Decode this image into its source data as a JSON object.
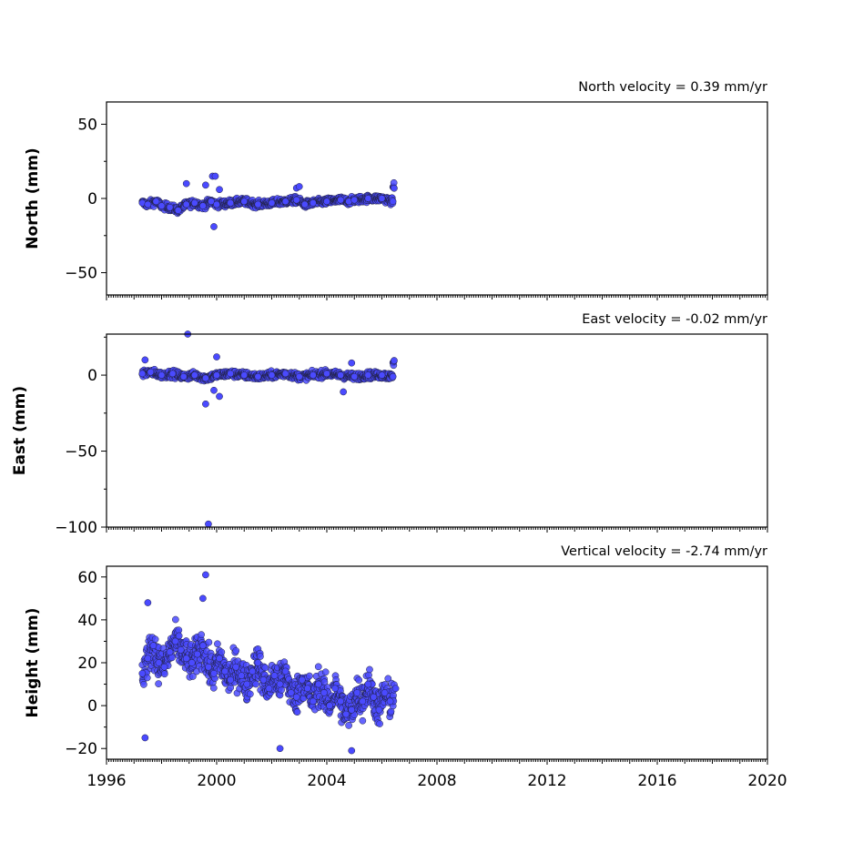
{
  "chart_data": [
    {
      "type": "scatter",
      "title": "North velocity = 0.39 mm/yr",
      "ylabel": "North (mm)",
      "xlim": [
        1996,
        2020
      ],
      "ylim": [
        -65,
        65
      ],
      "yticks": [
        -50,
        0,
        50
      ],
      "ytick_labels": [
        "−50",
        "0",
        "50"
      ],
      "xticks": [
        1996,
        2000,
        2004,
        2008,
        2012,
        2016,
        2020
      ],
      "xtick_labels": [],
      "marker_color": "#4a4aff",
      "series": [
        {
          "x": [
            1997.3,
            1997.5,
            1997.8,
            1998.0,
            1998.3,
            1998.6,
            1998.9,
            1999.2,
            1999.5,
            1999.8,
            2000.0,
            2000.5,
            2001.0,
            2001.5,
            2002.0,
            2002.5,
            2002.9,
            2003.2,
            2003.5,
            2004.0,
            2004.5,
            2004.8,
            2005.0,
            2005.5,
            2006.0,
            2006.4,
            1998.9,
            1999.6,
            1999.85,
            1999.95,
            2000.1,
            1999.9,
            2002.9,
            2003.0
          ],
          "y": [
            -3,
            -4,
            -2,
            -5,
            -6,
            -8,
            -4,
            -3,
            -5,
            -2,
            -4,
            -3,
            -2,
            -4,
            -3,
            -2,
            -1,
            -4,
            -3,
            -2,
            -1,
            -2,
            -1,
            0,
            0,
            -2,
            10,
            9,
            15,
            15,
            6,
            -19,
            7,
            8
          ]
        }
      ]
    },
    {
      "type": "scatter",
      "title": "East velocity = -0.02 mm/yr",
      "ylabel": "East (mm)",
      "xlim": [
        1996,
        2020
      ],
      "ylim": [
        -100,
        27
      ],
      "yticks": [
        -100,
        -50,
        0
      ],
      "ytick_labels": [
        "−100",
        "−50",
        "0"
      ],
      "xticks": [
        1996,
        2000,
        2004,
        2008,
        2012,
        2016,
        2020
      ],
      "xtick_labels": [],
      "marker_color": "#4a4aff",
      "series": [
        {
          "x": [
            1997.3,
            1997.6,
            1998.0,
            1998.4,
            1998.8,
            1999.2,
            1999.6,
            2000.0,
            2000.5,
            2001.0,
            2001.5,
            2002.0,
            2002.5,
            2003.0,
            2003.5,
            2004.0,
            2004.5,
            2005.0,
            2005.5,
            2006.0,
            2006.4,
            1997.4,
            1998.95,
            1999.6,
            1999.9,
            2000.0,
            2000.1,
            1999.7,
            2004.6,
            2004.9
          ],
          "y": [
            1,
            2,
            0,
            1,
            -1,
            0,
            -2,
            0,
            1,
            0,
            -1,
            0,
            1,
            -1,
            0,
            1,
            0,
            -1,
            0,
            0,
            -1,
            10,
            27,
            -19,
            -10,
            12,
            -14,
            -98,
            -11,
            8
          ]
        }
      ]
    },
    {
      "type": "scatter",
      "title": "Vertical velocity = -2.74 mm/yr",
      "ylabel": "Height (mm)",
      "xlim": [
        1996,
        2020
      ],
      "ylim": [
        -25,
        65
      ],
      "yticks": [
        -20,
        0,
        20,
        40,
        60
      ],
      "ytick_labels": [
        "−20",
        "0",
        "20",
        "40",
        "60"
      ],
      "xticks": [
        1996,
        2000,
        2004,
        2008,
        2012,
        2016,
        2020
      ],
      "xtick_labels": [
        "1996",
        "2000",
        "2004",
        "2008",
        "2012",
        "2016",
        "2020"
      ],
      "marker_color": "#4a4aff",
      "series": [
        {
          "x": [
            1997.3,
            1997.5,
            1997.7,
            1997.9,
            1998.1,
            1998.3,
            1998.5,
            1998.7,
            1998.9,
            1999.1,
            1999.3,
            1999.5,
            1999.7,
            1999.9,
            2000.1,
            2000.3,
            2000.5,
            2000.7,
            2000.9,
            2001.1,
            2001.3,
            2001.5,
            2001.7,
            2001.9,
            2002.1,
            2002.3,
            2002.5,
            2002.7,
            2002.9,
            2003.1,
            2003.3,
            2003.5,
            2003.7,
            2003.9,
            2004.1,
            2004.3,
            2004.5,
            2004.7,
            2004.9,
            2005.1,
            2005.3,
            2005.5,
            2005.7,
            2005.9,
            2006.1,
            2006.3,
            2006.5,
            1997.5,
            1999.6,
            1999.5,
            1997.4,
            2002.3,
            2004.9
          ],
          "y": [
            15,
            22,
            28,
            20,
            18,
            25,
            30,
            26,
            22,
            20,
            24,
            28,
            18,
            15,
            22,
            16,
            12,
            18,
            14,
            10,
            16,
            20,
            12,
            8,
            14,
            10,
            16,
            6,
            4,
            12,
            8,
            2,
            10,
            6,
            0,
            8,
            2,
            -4,
            -2,
            6,
            2,
            10,
            4,
            -2,
            6,
            2,
            8,
            48,
            61,
            50,
            -15,
            -20,
            -21
          ]
        }
      ]
    }
  ]
}
